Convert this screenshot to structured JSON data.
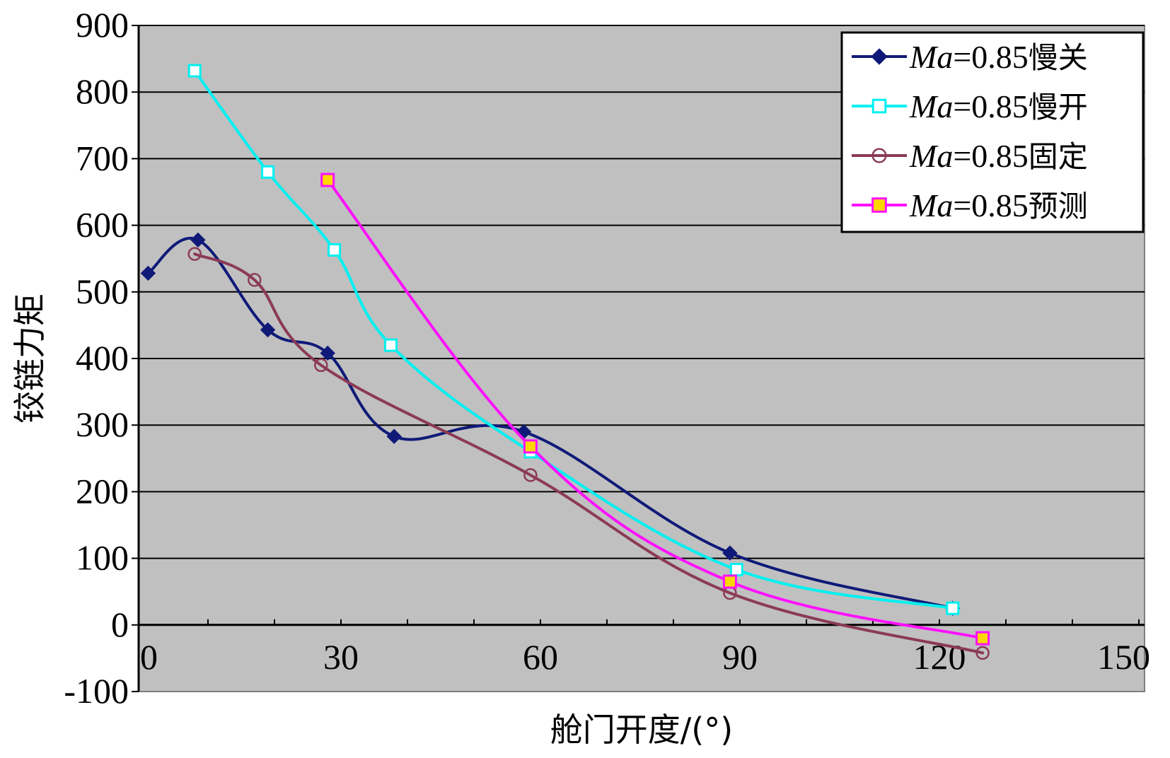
{
  "chart_data": {
    "type": "line",
    "title": "",
    "xlabel": "舱门开度/(°)",
    "ylabel": "铰链力矩",
    "xlim": [
      0,
      150
    ],
    "ylim": [
      -100,
      900
    ],
    "xticks": [
      0,
      30,
      60,
      90,
      120,
      150
    ],
    "yticks": [
      -100,
      0,
      100,
      200,
      300,
      400,
      500,
      600,
      700,
      800,
      900
    ],
    "grid": true,
    "background": "#c0c0c0",
    "legend_position": "top-right",
    "series": [
      {
        "name": "Ma=0.85慢关",
        "label_italic": "Ma",
        "label_rest": "=0.85",
        "label_cjk": "慢关",
        "color": "#0f1a78",
        "marker": "diamond",
        "x": [
          1,
          8.5,
          19,
          28,
          38,
          57.5,
          88.5,
          122
        ],
        "y": [
          528,
          578,
          443,
          408,
          283,
          290,
          108,
          25
        ]
      },
      {
        "name": "Ma=0.85慢开",
        "label_italic": "Ma",
        "label_rest": "=0.85",
        "label_cjk": "慢开",
        "color": "#00f0f0",
        "marker": "square-open",
        "x": [
          8,
          19,
          29,
          37.5,
          58.5,
          89.5,
          122
        ],
        "y": [
          832,
          680,
          563,
          420,
          260,
          83,
          25
        ]
      },
      {
        "name": "Ma=0.85固定",
        "label_italic": "Ma",
        "label_rest": "=0.85",
        "label_cjk": "固定",
        "color": "#8b3a55",
        "marker": "circle-open",
        "x": [
          8,
          17,
          27,
          58.5,
          88.5,
          126.5
        ],
        "y": [
          557,
          518,
          390,
          225,
          48,
          -42
        ]
      },
      {
        "name": "Ma=0.85预测",
        "label_italic": "Ma",
        "label_rest": "=0.85",
        "label_cjk": "预测",
        "color": "#ff10ff",
        "marker": "square-filled",
        "marker_fill": "#ffd700",
        "x": [
          28,
          58.5,
          88.5,
          126.5
        ],
        "y": [
          668,
          268,
          65,
          -20
        ]
      }
    ]
  }
}
